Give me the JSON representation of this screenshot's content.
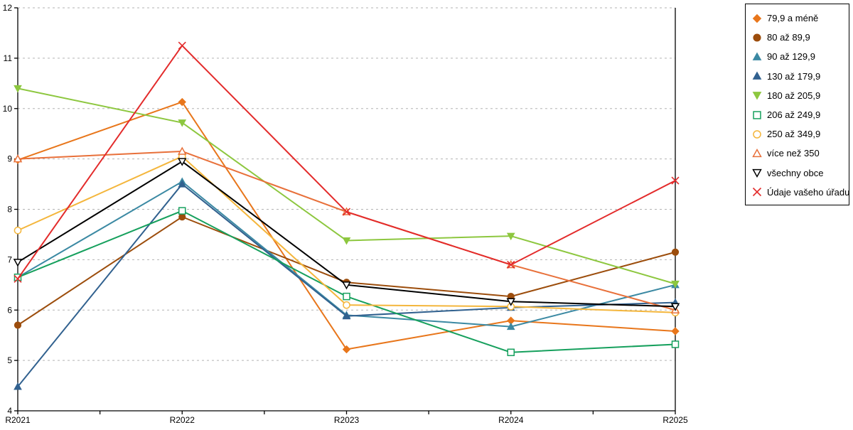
{
  "chart_data": {
    "type": "line",
    "title": "",
    "xlabel": "",
    "ylabel": "",
    "categories": [
      "R2021",
      "R2022",
      "R2023",
      "R2024",
      "R2025"
    ],
    "ylim": [
      4,
      12
    ],
    "ytick_step": 1,
    "grid": "horizontal-dashed",
    "gridline_color": "#b3b3b3",
    "axis_color": "#000000",
    "legend_position": "right",
    "series": [
      {
        "name": "79,9 a méně",
        "color": "#E8761B",
        "marker": "diamond",
        "fill": "solid",
        "values": [
          8.98,
          10.13,
          5.22,
          5.79,
          5.58
        ]
      },
      {
        "name": "80 až 89,9",
        "color": "#9C4D0C",
        "marker": "circle",
        "fill": "solid",
        "values": [
          5.7,
          7.85,
          6.55,
          6.27,
          7.15
        ]
      },
      {
        "name": "90 až 129,9",
        "color": "#3B89A3",
        "marker": "triangle-up",
        "fill": "solid",
        "values": [
          6.65,
          8.55,
          5.9,
          5.67,
          6.5
        ]
      },
      {
        "name": "130 až 179,9",
        "color": "#31618F",
        "marker": "triangle-up",
        "fill": "solid",
        "values": [
          4.48,
          8.5,
          5.88,
          6.05,
          6.15
        ]
      },
      {
        "name": "180 až 205,9",
        "color": "#8DC73F",
        "marker": "triangle-down",
        "fill": "solid",
        "values": [
          10.4,
          9.72,
          7.38,
          7.47,
          6.52
        ]
      },
      {
        "name": "206 až 249,9",
        "color": "#16A05D",
        "marker": "square",
        "fill": "open",
        "values": [
          6.65,
          7.97,
          6.27,
          5.16,
          5.32
        ]
      },
      {
        "name": "250 až 349,9",
        "color": "#F4B63C",
        "marker": "circle",
        "fill": "open",
        "values": [
          7.58,
          9.05,
          6.1,
          6.07,
          5.95
        ]
      },
      {
        "name": "více než 350",
        "color": "#E8703A",
        "marker": "triangle-up",
        "fill": "open",
        "values": [
          9.0,
          9.15,
          7.95,
          6.9,
          6.0
        ]
      },
      {
        "name": "všechny obce",
        "color": "#000000",
        "marker": "triangle-down",
        "fill": "open",
        "values": [
          6.95,
          8.95,
          6.5,
          6.17,
          6.07
        ]
      },
      {
        "name": "Údaje vašeho úřadu",
        "color": "#E32B2B",
        "marker": "x",
        "fill": "open",
        "values": [
          6.62,
          11.25,
          7.95,
          6.9,
          8.57
        ]
      }
    ]
  }
}
